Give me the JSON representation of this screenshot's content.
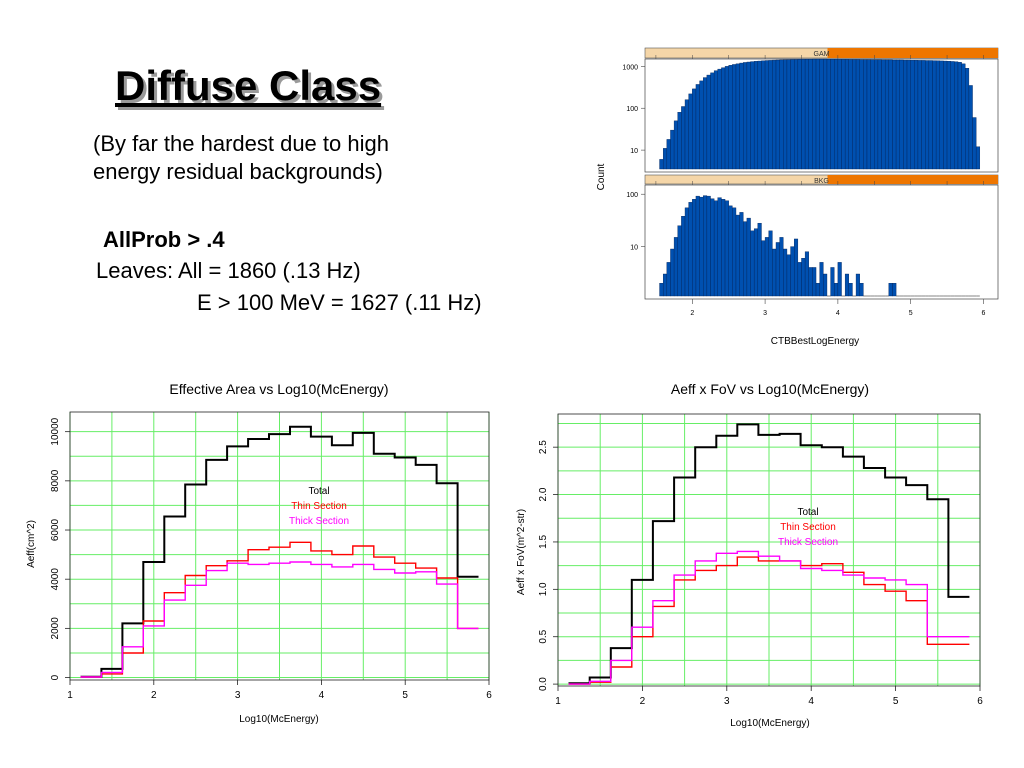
{
  "slide": {
    "title": "Diffuse Class",
    "subtitle_line1": "(By far the hardest due to high",
    "subtitle_line2": "energy residual backgrounds)",
    "cut": "AllProb > .4",
    "leaves_all": "Leaves: All = 1860 (.13 Hz)",
    "leaves_e100": "E > 100 MeV = 1627 (.11 Hz)"
  },
  "colors": {
    "total": "#000000",
    "thin": "#ff0000",
    "thick": "#ff00ff",
    "grid": "#66ee66",
    "hist_fill": "#0050b0",
    "strip_light": "#f5d6a8",
    "strip_dark": "#ee7600"
  },
  "chart_data": [
    {
      "type": "bar",
      "panel": "GAM",
      "ylog": true,
      "xlabel": "CTBBestLogEnergy",
      "ylabel": "Count",
      "xlim": [
        1.35,
        6.2
      ],
      "ylim": [
        3,
        1500
      ],
      "yticks": [
        10,
        100,
        1000
      ],
      "xticks": [
        2,
        3,
        4,
        5,
        6
      ],
      "bin_start": 1.55,
      "bin_width": 0.05,
      "values": [
        6,
        11,
        18,
        30,
        50,
        80,
        110,
        160,
        220,
        290,
        370,
        450,
        540,
        620,
        700,
        790,
        860,
        930,
        1000,
        1060,
        1110,
        1150,
        1200,
        1240,
        1270,
        1300,
        1320,
        1340,
        1360,
        1380,
        1390,
        1410,
        1420,
        1430,
        1440,
        1450,
        1460,
        1460,
        1470,
        1470,
        1480,
        1480,
        1490,
        1490,
        1490,
        1490,
        1480,
        1480,
        1480,
        1470,
        1470,
        1470,
        1460,
        1460,
        1460,
        1450,
        1450,
        1450,
        1440,
        1440,
        1440,
        1430,
        1430,
        1430,
        1420,
        1420,
        1420,
        1410,
        1410,
        1400,
        1400,
        1390,
        1390,
        1380,
        1380,
        1370,
        1360,
        1350,
        1340,
        1330,
        1310,
        1290,
        1250,
        1150,
        900,
        350,
        60,
        12
      ]
    },
    {
      "type": "bar",
      "panel": "BKG",
      "ylog": true,
      "xlabel": "CTBBestLogEnergy",
      "ylabel": "Count",
      "xlim": [
        1.35,
        6.2
      ],
      "ylim": [
        1,
        150
      ],
      "yticks": [
        10,
        100
      ],
      "xticks": [
        2,
        3,
        4,
        5,
        6
      ],
      "bin_start": 1.55,
      "bin_width": 0.05,
      "values": [
        2,
        3,
        5,
        9,
        15,
        25,
        38,
        55,
        70,
        80,
        92,
        88,
        94,
        92,
        82,
        75,
        86,
        80,
        75,
        60,
        55,
        40,
        45,
        30,
        35,
        20,
        22,
        28,
        13,
        15,
        20,
        9,
        12,
        15,
        9,
        7,
        10,
        14,
        5,
        6,
        8,
        4,
        4,
        2,
        5,
        3,
        0,
        4,
        2,
        5,
        0,
        3,
        2,
        0,
        3,
        2,
        0,
        0,
        0,
        0,
        0,
        0,
        0,
        2,
        2,
        0,
        0,
        0,
        0,
        0,
        0,
        0,
        0,
        0,
        0,
        0,
        0,
        0,
        0,
        0,
        0,
        0,
        0,
        0,
        0,
        0,
        0,
        0
      ]
    },
    {
      "type": "line",
      "title": "Effective Area vs Log10(McEnergy)",
      "xlabel": "Log10(McEnergy)",
      "ylabel": "Aeff(cm^2)",
      "xlim": [
        1,
        6
      ],
      "ylim": [
        -100,
        10800
      ],
      "xticks": [
        1,
        2,
        3,
        4,
        5,
        6
      ],
      "yticks": [
        0,
        2000,
        4000,
        6000,
        8000,
        10000
      ],
      "legend": [
        "Total",
        "Thin Section",
        "Thick Section"
      ],
      "x": [
        1.25,
        1.5,
        1.75,
        2.0,
        2.25,
        2.5,
        2.75,
        3.0,
        3.25,
        3.5,
        3.75,
        4.0,
        4.25,
        4.5,
        4.75,
        5.0,
        5.25,
        5.5,
        5.75
      ],
      "series": [
        {
          "name": "Total",
          "values": [
            30,
            350,
            2200,
            4700,
            6550,
            7850,
            8850,
            9400,
            9700,
            9900,
            10200,
            9800,
            9450,
            9950,
            9100,
            8950,
            8650,
            7900,
            4100
          ]
        },
        {
          "name": "Thin Section",
          "values": [
            20,
            150,
            1000,
            2300,
            3450,
            4150,
            4550,
            4750,
            5200,
            5300,
            5500,
            5150,
            5000,
            5350,
            4900,
            4650,
            4450,
            4050,
            2000
          ]
        },
        {
          "name": "Thick Section",
          "values": [
            20,
            210,
            1250,
            2100,
            3150,
            3750,
            4350,
            4650,
            4600,
            4650,
            4700,
            4600,
            4500,
            4600,
            4400,
            4250,
            4300,
            3800,
            2000
          ]
        }
      ]
    },
    {
      "type": "line",
      "title": "Aeff x FoV vs Log10(McEnergy)",
      "xlabel": "Log10(McEnergy)",
      "ylabel": "Aeff x FoV(m^2-str)",
      "xlim": [
        1,
        6
      ],
      "ylim": [
        -0.02,
        2.85
      ],
      "xticks": [
        1,
        2,
        3,
        4,
        5,
        6
      ],
      "yticks": [
        0.0,
        0.5,
        1.0,
        1.5,
        2.0,
        2.5
      ],
      "legend": [
        "Total",
        "Thin Section",
        "Thick Section"
      ],
      "x": [
        1.25,
        1.5,
        1.75,
        2.0,
        2.25,
        2.5,
        2.75,
        3.0,
        3.25,
        3.5,
        3.75,
        4.0,
        4.25,
        4.5,
        4.75,
        5.0,
        5.25,
        5.5,
        5.75
      ],
      "series": [
        {
          "name": "Total",
          "values": [
            0.01,
            0.07,
            0.38,
            1.1,
            1.72,
            2.18,
            2.5,
            2.62,
            2.74,
            2.63,
            2.64,
            2.52,
            2.5,
            2.4,
            2.28,
            2.18,
            2.1,
            1.95,
            0.92
          ]
        },
        {
          "name": "Thin Section",
          "values": [
            0.0,
            0.02,
            0.18,
            0.5,
            0.82,
            1.1,
            1.2,
            1.25,
            1.34,
            1.3,
            1.3,
            1.25,
            1.27,
            1.18,
            1.05,
            0.98,
            0.88,
            0.42,
            0.42
          ]
        },
        {
          "name": "Thick Section",
          "values": [
            0.0,
            0.03,
            0.25,
            0.6,
            0.88,
            1.15,
            1.3,
            1.38,
            1.4,
            1.35,
            1.3,
            1.22,
            1.2,
            1.15,
            1.12,
            1.1,
            1.05,
            0.5,
            0.5
          ]
        }
      ]
    }
  ]
}
